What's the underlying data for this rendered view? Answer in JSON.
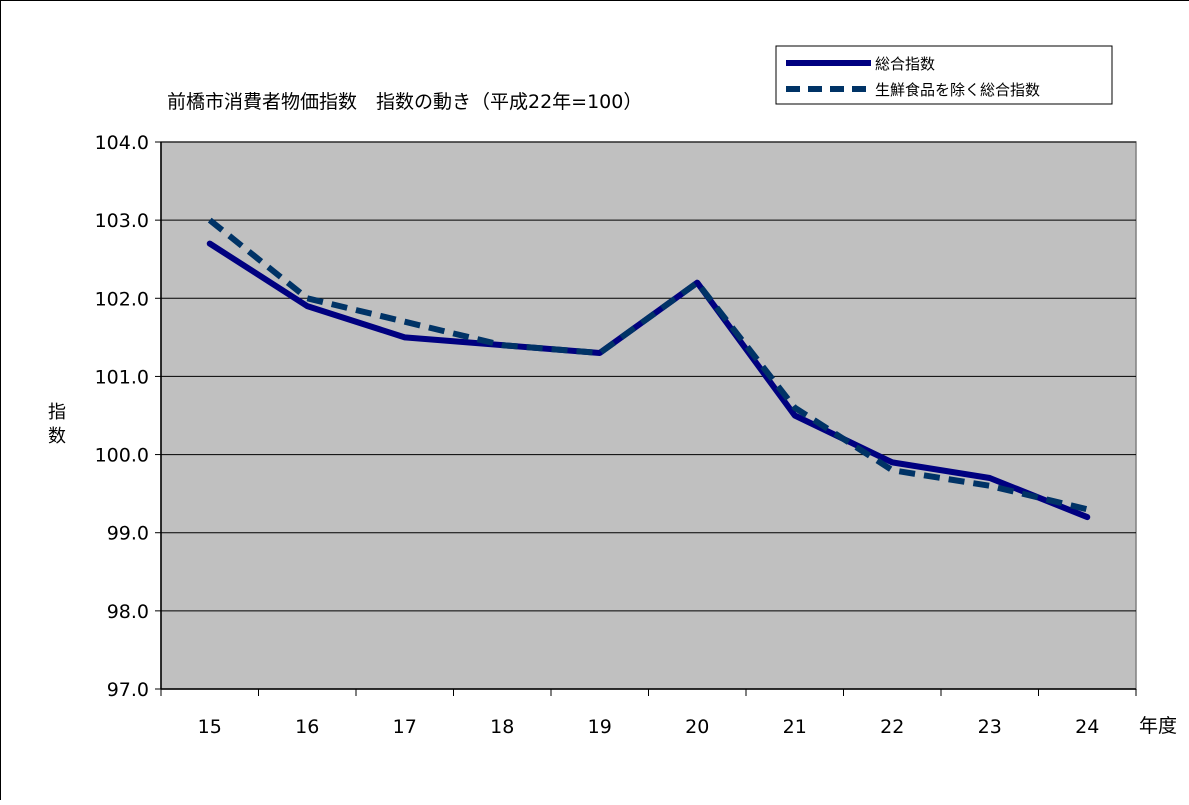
{
  "chart_data": {
    "type": "line",
    "title": "前橋市消費者物価指数　指数の動き（平成22年=100）",
    "xlabel": "年度",
    "ylabel": "指数",
    "x": [
      "15",
      "16",
      "17",
      "18",
      "19",
      "20",
      "21",
      "22",
      "23",
      "24"
    ],
    "ylim": [
      97.0,
      104.0
    ],
    "yticks": [
      "97.0",
      "98.0",
      "99.0",
      "100.0",
      "101.0",
      "102.0",
      "103.0",
      "104.0"
    ],
    "grid": true,
    "legend": "top-right",
    "series": [
      {
        "name": "総合指数",
        "style": "solid",
        "color": "#000080",
        "values": [
          102.7,
          101.9,
          101.5,
          101.4,
          101.3,
          102.2,
          100.5,
          99.9,
          99.7,
          99.2
        ]
      },
      {
        "name": "生鮮食品を除く総合指数",
        "style": "dashed",
        "color": "#003366",
        "values": [
          103.0,
          102.0,
          101.7,
          101.4,
          101.3,
          102.2,
          100.6,
          99.8,
          99.6,
          99.3
        ]
      }
    ],
    "plot_background": "#c0c0c0"
  }
}
